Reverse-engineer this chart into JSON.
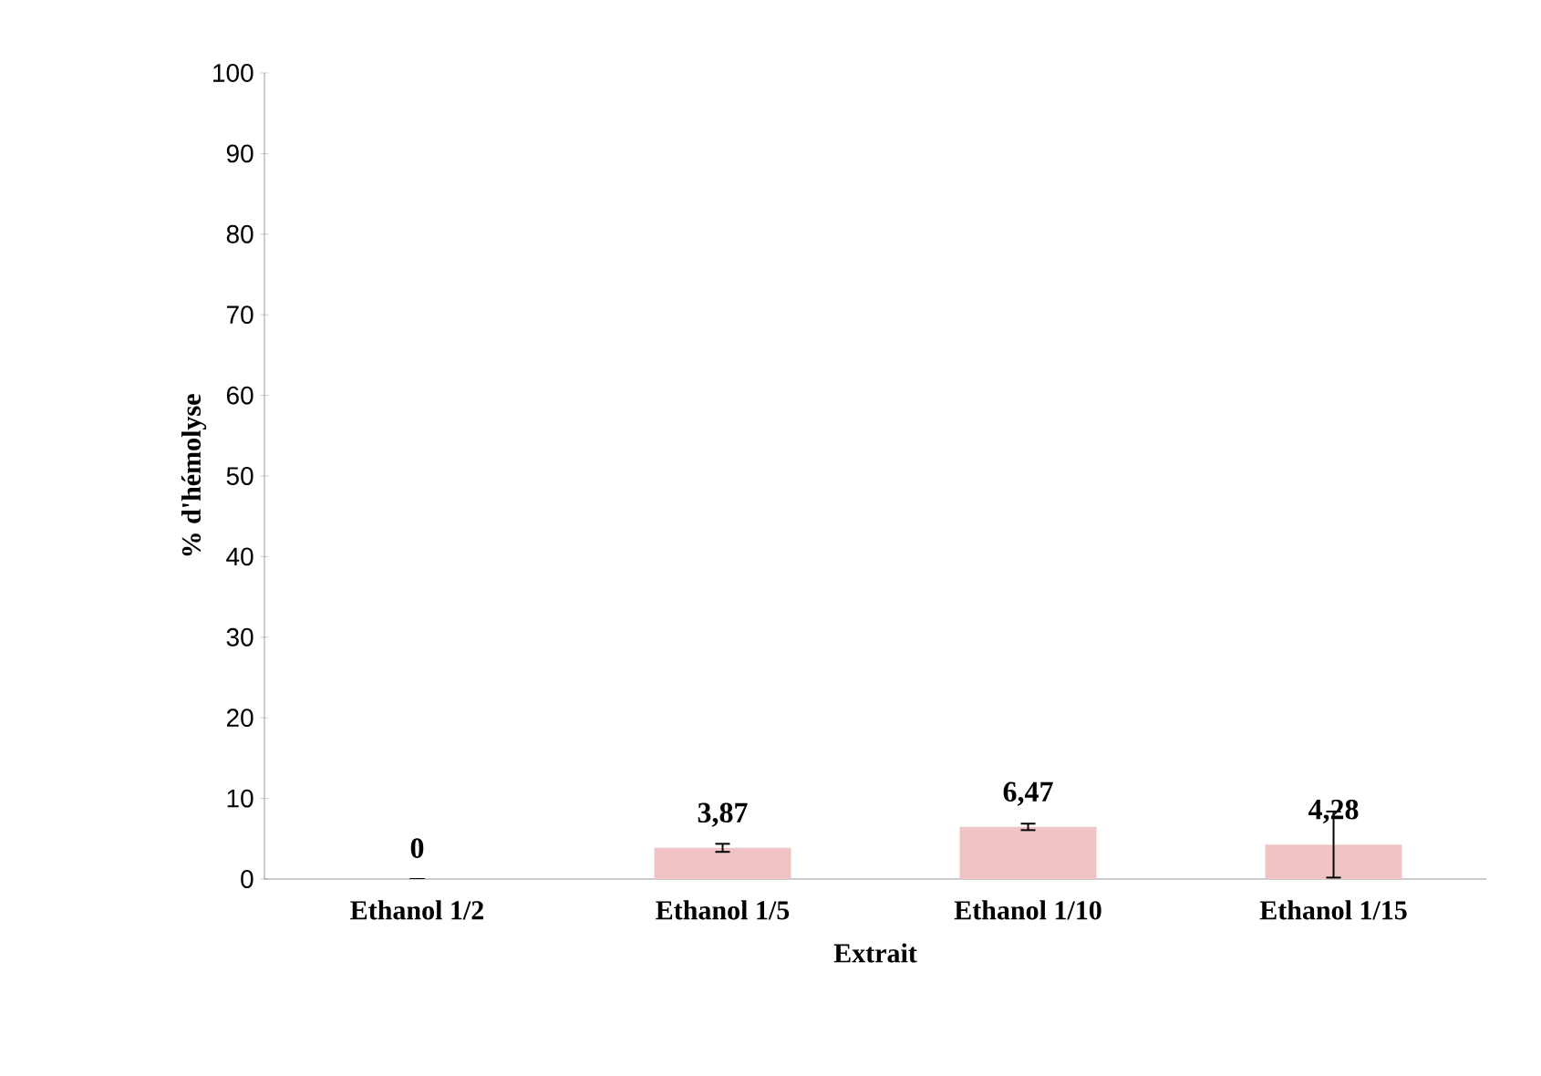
{
  "chart_data": {
    "type": "bar",
    "xlabel": "Extrait",
    "ylabel": "% d'hémolyse",
    "categories": [
      "Ethanol 1/2",
      "Ethanol 1/5",
      "Ethanol 1/10",
      "Ethanol 1/15"
    ],
    "values": [
      0,
      3.87,
      6.47,
      4.28
    ],
    "errors": [
      0,
      0.5,
      0.4,
      4.1
    ],
    "value_labels": [
      "0",
      "3,87",
      "6,47",
      "4,28"
    ],
    "color": "#f0c4c4",
    "ylim": [
      0,
      100
    ],
    "yticks": [
      0,
      10,
      20,
      30,
      40,
      50,
      60,
      70,
      80,
      90,
      100
    ],
    "grid": false
  }
}
